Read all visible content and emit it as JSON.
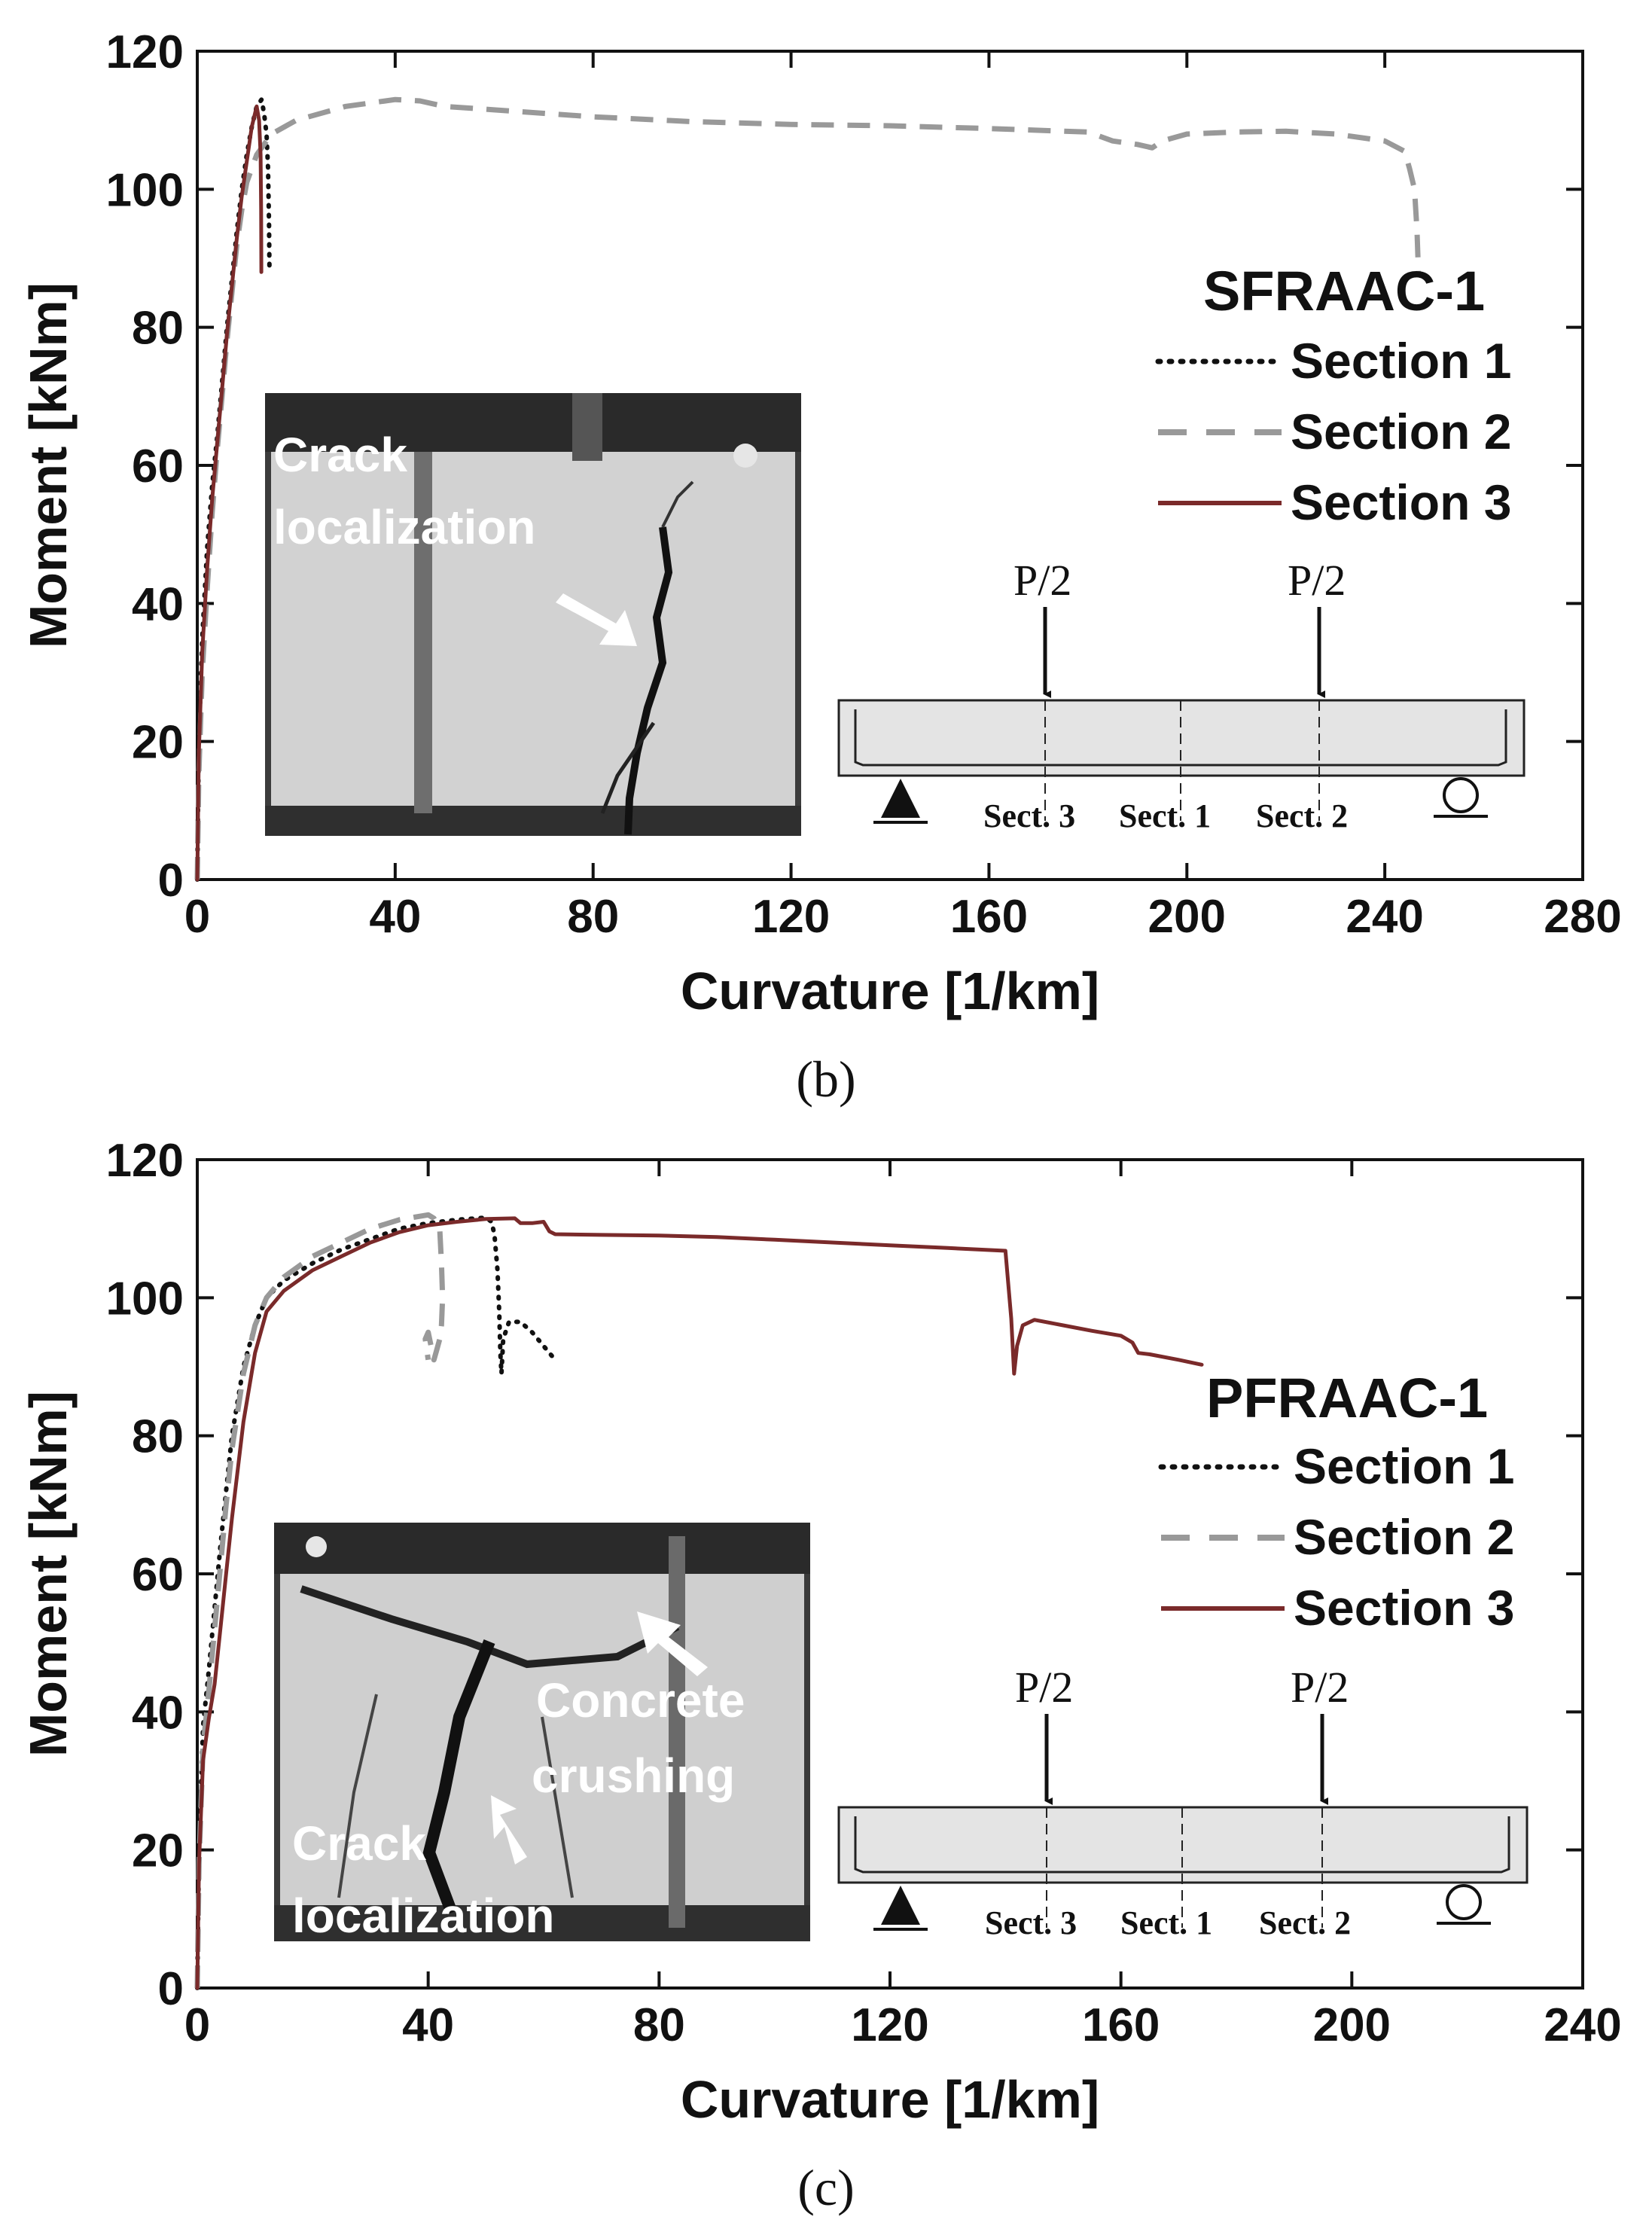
{
  "colors": {
    "section1": "#111111",
    "section2": "#999999",
    "section3": "#7a2a2a",
    "photo_bg": "#3a3a3a"
  },
  "chart_data": [
    {
      "type": "line",
      "panel_label": "(b)",
      "xlabel": "Curvature [1/km]",
      "ylabel": "Moment [kNm]",
      "xlim": [
        0,
        280
      ],
      "ylim": [
        0,
        120
      ],
      "xticks": [
        0,
        40,
        80,
        120,
        160,
        200,
        240,
        280
      ],
      "yticks": [
        0,
        20,
        40,
        60,
        80,
        100,
        120
      ],
      "legend_title": "SFRAAC-1",
      "legend_position": "right",
      "series": [
        {
          "name": "Section 1",
          "style": "dotted",
          "x": [
            0,
            0.3,
            1,
            2,
            3,
            4,
            5,
            6,
            7,
            8,
            9,
            10,
            11,
            12,
            13,
            13.5,
            14,
            14.3,
            14.5,
            14.6
          ],
          "y": [
            0,
            20,
            35,
            48,
            57,
            64,
            72,
            80,
            87,
            94,
            100,
            105,
            109,
            112,
            113,
            111,
            108,
            103,
            95,
            88
          ]
        },
        {
          "name": "Section 2",
          "style": "dashed",
          "x": [
            0,
            0.3,
            1,
            2,
            3,
            4,
            5,
            6,
            7,
            8,
            9,
            10,
            12,
            15,
            20,
            30,
            40,
            45,
            50,
            60,
            80,
            100,
            120,
            140,
            160,
            180,
            185,
            190,
            193,
            195,
            200,
            210,
            220,
            230,
            240,
            244,
            245,
            246,
            246.5,
            246.8
          ],
          "y": [
            0,
            15,
            30,
            42,
            53,
            62,
            70,
            78,
            85,
            92,
            97,
            101,
            105,
            108,
            110,
            112,
            113,
            112.8,
            112,
            111.5,
            110.5,
            109.8,
            109.4,
            109.2,
            108.8,
            108.3,
            107,
            106.5,
            106,
            107,
            108,
            108.3,
            108.4,
            108,
            107,
            105.5,
            103,
            100,
            94,
            88
          ]
        },
        {
          "name": "Section 3",
          "style": "solid",
          "x": [
            0,
            0.3,
            1,
            2,
            3,
            4,
            5,
            6,
            7,
            8,
            9,
            10,
            11,
            12,
            12.5,
            12.8,
            12.9,
            12.95
          ],
          "y": [
            0,
            18,
            33,
            45,
            55,
            63,
            71,
            79,
            86,
            93,
            99,
            104,
            109,
            112,
            110,
            105,
            97,
            88
          ]
        }
      ],
      "photo_annotations": [
        "Crack",
        "localization"
      ],
      "beam_diagram": {
        "loads": [
          "P/2",
          "P/2"
        ],
        "sections": [
          "Sect. 3",
          "Sect. 1",
          "Sect. 2"
        ]
      }
    },
    {
      "type": "line",
      "panel_label": "(c)",
      "xlabel": "Curvature [1/km]",
      "ylabel": "Moment [kNm]",
      "xlim": [
        0,
        240
      ],
      "ylim": [
        0,
        120
      ],
      "xticks": [
        0,
        40,
        80,
        120,
        160,
        200,
        240
      ],
      "yticks": [
        0,
        20,
        40,
        60,
        80,
        100,
        120
      ],
      "legend_title": "PFRAAC-1",
      "legend_position": "right",
      "series": [
        {
          "name": "Section 1",
          "style": "dotted",
          "x": [
            0,
            0.3,
            1,
            2,
            3,
            4,
            5,
            6,
            8,
            10,
            12,
            15,
            20,
            25,
            30,
            35,
            40,
            45,
            50,
            51,
            51.5,
            52,
            52.3,
            52.5,
            52.7,
            53,
            54,
            56,
            58,
            60,
            61,
            62
          ],
          "y": [
            0,
            20,
            38,
            46,
            55,
            64,
            72,
            80,
            90,
            96,
            100,
            102.5,
            105,
            107,
            108.5,
            110,
            110.8,
            111.3,
            111.6,
            111,
            109,
            104,
            98,
            92,
            89,
            94,
            96.5,
            96.5,
            95,
            93,
            92,
            91
          ]
        },
        {
          "name": "Section 2",
          "style": "dashed",
          "x": [
            0,
            0.3,
            1,
            2,
            3,
            4,
            5,
            6,
            8,
            10,
            12,
            15,
            20,
            25,
            30,
            35,
            40,
            41,
            42,
            42.3,
            42.5,
            42.3,
            42,
            41.5,
            41,
            40.5,
            40,
            39.5,
            40
          ],
          "y": [
            0,
            18,
            35,
            43,
            52,
            61,
            70,
            78,
            89,
            96,
            100,
            103,
            106,
            108,
            110,
            111.3,
            112,
            111.5,
            110,
            105,
            100,
            96,
            94,
            92.5,
            91,
            93,
            95,
            94,
            91
          ]
        },
        {
          "name": "Section 3",
          "style": "solid",
          "x": [
            0,
            0.3,
            1,
            2,
            3,
            4,
            5,
            6,
            8,
            10,
            12,
            15,
            20,
            25,
            30,
            35,
            40,
            45,
            50,
            55,
            56,
            58,
            60,
            61,
            62,
            70,
            80,
            90,
            100,
            110,
            120,
            130,
            140,
            141,
            141.5,
            142,
            143,
            145,
            150,
            155,
            160,
            162,
            163,
            165,
            170,
            174
          ],
          "y": [
            0,
            18,
            33,
            39,
            44,
            52,
            60,
            68,
            82,
            92,
            98,
            101,
            104,
            106,
            108,
            109.5,
            110.5,
            111,
            111.4,
            111.5,
            110.8,
            110.8,
            111,
            109.6,
            109.2,
            109.1,
            109,
            108.8,
            108.4,
            108,
            107.6,
            107.2,
            106.8,
            97,
            89,
            93,
            96,
            96.8,
            96,
            95.2,
            94.5,
            93.5,
            92,
            91.8,
            91,
            90.3
          ]
        }
      ],
      "photo_annotations": [
        "Concrete",
        "crushing",
        "Crack",
        "localization"
      ],
      "beam_diagram": {
        "loads": [
          "P/2",
          "P/2"
        ],
        "sections": [
          "Sect. 3",
          "Sect. 1",
          "Sect. 2"
        ]
      }
    }
  ]
}
